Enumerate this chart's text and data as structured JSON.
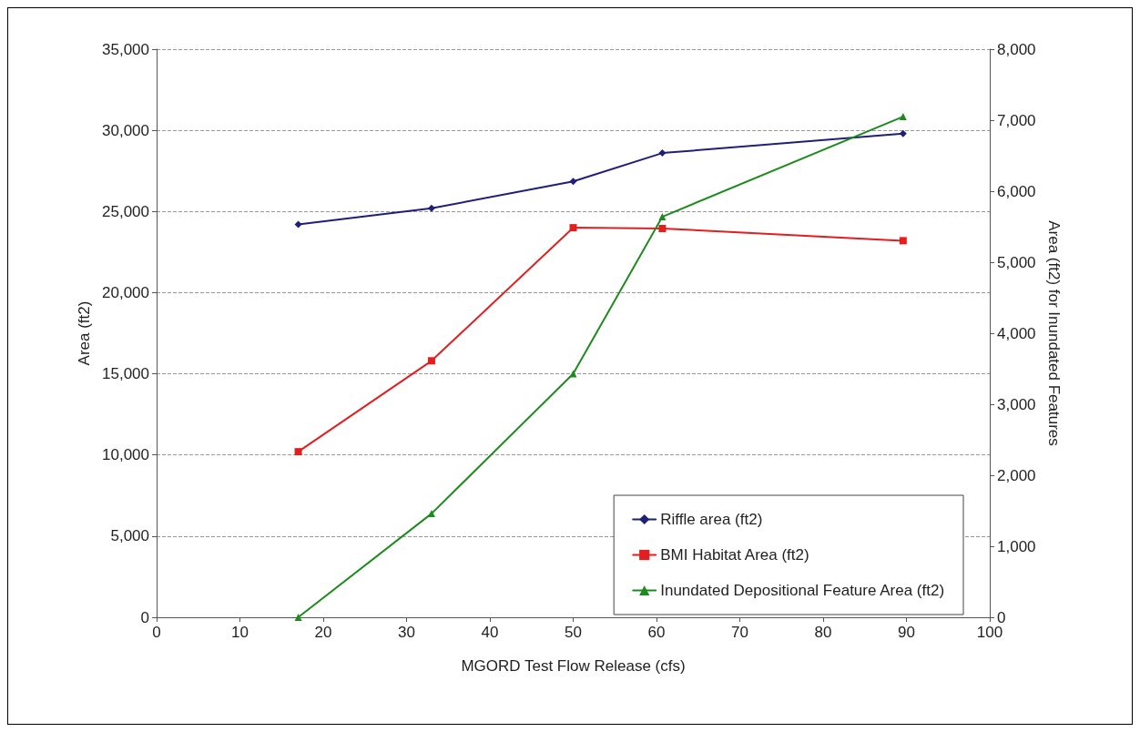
{
  "chart_data": {
    "type": "line",
    "xlabel": "MGORD Test Flow Release (cfs)",
    "ylabel": "Area (ft2)",
    "y2label": "Area (ft2) for Inundated Features",
    "x": [
      17,
      33,
      50,
      60.7,
      89.6
    ],
    "series": [
      {
        "name": "Riffle area (ft2)",
        "color": "#1f1f7a",
        "marker": "diamond",
        "values": [
          24200,
          25200,
          26850,
          28600,
          29800
        ]
      },
      {
        "name": "BMI Habitat Area (ft2)",
        "color": "#e02020",
        "marker": "square",
        "values": [
          10200,
          15800,
          24000,
          23950,
          23200
        ]
      },
      {
        "name": "Inundated Depositional Feature Area (ft2)",
        "color": "#1f8a1f",
        "marker": "triangle",
        "axis": "y2",
        "values": [
          0,
          1460,
          3430,
          5640,
          7050
        ]
      }
    ],
    "xlim": [
      0,
      100
    ],
    "xticks": [
      0,
      10,
      20,
      30,
      40,
      50,
      60,
      70,
      80,
      90,
      100
    ],
    "ylim": [
      0,
      35000
    ],
    "yticks": [
      0,
      {
        "value": 5000,
        "label": "5,000"
      },
      {
        "value": 10000,
        "label": "10,000"
      },
      {
        "value": 15000,
        "label": "15,000"
      },
      {
        "value": 20000,
        "label": "20,000"
      },
      {
        "value": 25000,
        "label": "25,000"
      },
      {
        "value": 30000,
        "label": "30,000"
      },
      {
        "value": 35000,
        "label": "35,000"
      }
    ],
    "y2lim": [
      0,
      8000
    ],
    "y2ticks": [
      0,
      {
        "value": 1000,
        "label": "1,000"
      },
      {
        "value": 2000,
        "label": "2,000"
      },
      {
        "value": 3000,
        "label": "3,000"
      },
      {
        "value": 4000,
        "label": "4,000"
      },
      {
        "value": 5000,
        "label": "5,000"
      },
      {
        "value": 6000,
        "label": "6,000"
      },
      {
        "value": 7000,
        "label": "7,000"
      },
      {
        "value": 8000,
        "label": "8,000"
      }
    ],
    "grid": "y",
    "legend": "bottom right",
    "line_style": "solid"
  }
}
